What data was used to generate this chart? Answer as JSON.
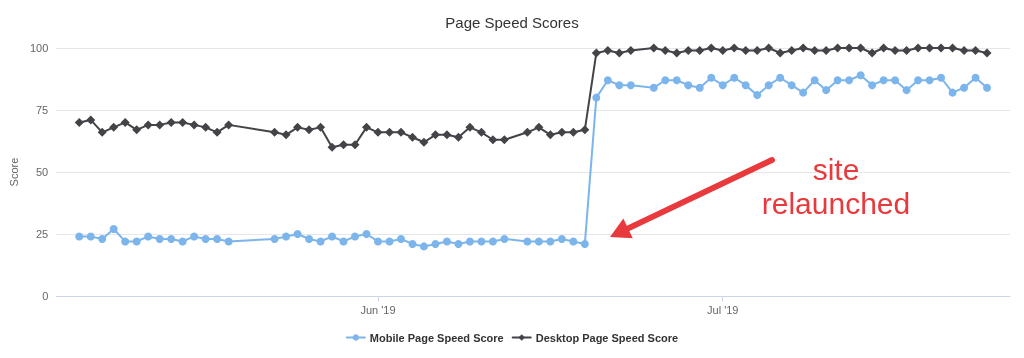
{
  "chart_data": {
    "type": "line",
    "title": "Page Speed Scores",
    "ylabel": "Score",
    "x": [
      "2019-05-06",
      "2019-05-07",
      "2019-05-08",
      "2019-05-09",
      "2019-05-10",
      "2019-05-11",
      "2019-05-12",
      "2019-05-13",
      "2019-05-14",
      "2019-05-15",
      "2019-05-16",
      "2019-05-17",
      "2019-05-18",
      "2019-05-19",
      "2019-05-23",
      "2019-05-24",
      "2019-05-25",
      "2019-05-26",
      "2019-05-27",
      "2019-05-28",
      "2019-05-29",
      "2019-05-30",
      "2019-05-31",
      "2019-06-01",
      "2019-06-02",
      "2019-06-03",
      "2019-06-04",
      "2019-06-05",
      "2019-06-06",
      "2019-06-07",
      "2019-06-08",
      "2019-06-09",
      "2019-06-10",
      "2019-06-11",
      "2019-06-12",
      "2019-06-14",
      "2019-06-15",
      "2019-06-16",
      "2019-06-17",
      "2019-06-18",
      "2019-06-19",
      "2019-06-20",
      "2019-06-21",
      "2019-06-22",
      "2019-06-23",
      "2019-06-25",
      "2019-06-26",
      "2019-06-27",
      "2019-06-28",
      "2019-06-29",
      "2019-06-30",
      "2019-07-01",
      "2019-07-02",
      "2019-07-03",
      "2019-07-04",
      "2019-07-05",
      "2019-07-06",
      "2019-07-07",
      "2019-07-08",
      "2019-07-09",
      "2019-07-10",
      "2019-07-11",
      "2019-07-12",
      "2019-07-13",
      "2019-07-14",
      "2019-07-15",
      "2019-07-16",
      "2019-07-17",
      "2019-07-18",
      "2019-07-19",
      "2019-07-20",
      "2019-07-21",
      "2019-07-22",
      "2019-07-23",
      "2019-07-24"
    ],
    "series": [
      {
        "name": "Mobile Page Speed Score",
        "color": "#7cb5ec",
        "marker": "circle",
        "values": [
          24,
          24,
          23,
          27,
          22,
          22,
          24,
          23,
          23,
          22,
          24,
          23,
          23,
          22,
          23,
          24,
          25,
          23,
          22,
          24,
          22,
          24,
          25,
          22,
          22,
          23,
          21,
          20,
          21,
          22,
          21,
          22,
          22,
          22,
          23,
          22,
          22,
          22,
          23,
          22,
          21,
          80,
          87,
          85,
          85,
          84,
          87,
          87,
          85,
          84,
          88,
          85,
          88,
          85,
          81,
          85,
          88,
          85,
          82,
          87,
          83,
          87,
          87,
          89,
          85,
          87,
          87,
          83,
          87,
          87,
          88,
          82,
          84,
          88,
          84
        ]
      },
      {
        "name": "Desktop Page Speed Score",
        "color": "#434348",
        "marker": "diamond",
        "values": [
          70,
          71,
          66,
          68,
          70,
          67,
          69,
          69,
          70,
          70,
          69,
          68,
          66,
          69,
          66,
          65,
          68,
          67,
          68,
          60,
          61,
          61,
          68,
          66,
          66,
          66,
          64,
          62,
          65,
          65,
          64,
          68,
          66,
          63,
          63,
          66,
          68,
          65,
          66,
          66,
          67,
          98,
          99,
          98,
          99,
          100,
          99,
          98,
          99,
          99,
          100,
          99,
          100,
          99,
          99,
          100,
          98,
          99,
          100,
          99,
          99,
          100,
          100,
          100,
          98,
          100,
          99,
          99,
          100,
          100,
          100,
          100,
          99,
          99,
          98
        ]
      }
    ],
    "xlim": [
      "2019-05-04",
      "2019-07-26"
    ],
    "xticks": [
      {
        "value": "2019-06-01",
        "label": "Jun '19"
      },
      {
        "value": "2019-07-01",
        "label": "Jul '19"
      }
    ],
    "ylim": [
      0,
      100
    ],
    "yticks": [
      0,
      25,
      50,
      75,
      100
    ],
    "grid": "y",
    "legend": "bottom",
    "line_style": "solid",
    "annotations": [
      "site\nrelaunched"
    ]
  }
}
